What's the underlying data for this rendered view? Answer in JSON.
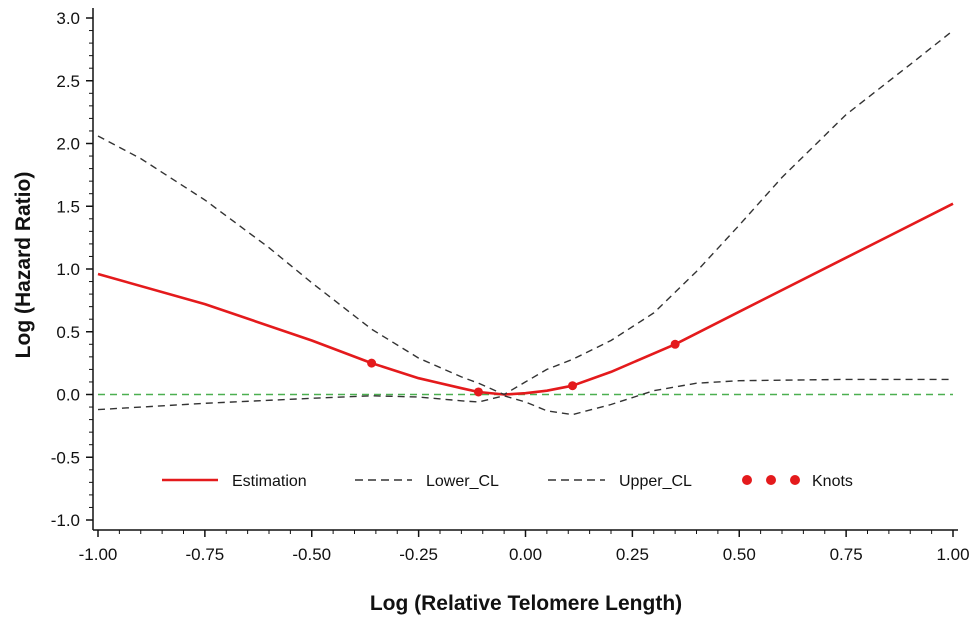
{
  "chart_data": {
    "type": "line",
    "title": "",
    "xlabel": "Log (Relative Telomere Length)",
    "ylabel": "Log (Hazard Ratio)",
    "xlim": [
      -1.0,
      1.0
    ],
    "ylim": [
      -1.0,
      3.0
    ],
    "x_ticks": [
      "-1.00",
      "-0.75",
      "-0.50",
      "-0.25",
      "0.00",
      "0.25",
      "0.50",
      "0.75",
      "1.00"
    ],
    "y_ticks": [
      "-1.0",
      "-0.5",
      "0.0",
      "0.5",
      "1.0",
      "1.5",
      "2.0",
      "2.5",
      "3.0"
    ],
    "grid": false,
    "reference_line": {
      "y": 0.0,
      "style": "dashed",
      "color": "#4caf50"
    },
    "legend": {
      "placement": "bottom-inside",
      "entries": [
        "Estimation",
        "Lower_CL",
        "Upper_CL",
        "Knots"
      ]
    },
    "series": [
      {
        "name": "Estimation",
        "color": "#e41a1c",
        "style": "solid",
        "x": [
          -1.0,
          -0.75,
          -0.5,
          -0.36,
          -0.25,
          -0.15,
          -0.11,
          -0.05,
          0.0,
          0.05,
          0.11,
          0.2,
          0.35,
          0.5,
          0.75,
          1.0
        ],
        "y": [
          0.96,
          0.72,
          0.43,
          0.25,
          0.13,
          0.05,
          0.02,
          0.0,
          0.01,
          0.03,
          0.07,
          0.18,
          0.4,
          0.66,
          1.09,
          1.52
        ]
      },
      {
        "name": "Lower_CL",
        "color": "#333333",
        "style": "dashed",
        "x": [
          -1.0,
          -0.75,
          -0.5,
          -0.36,
          -0.25,
          -0.15,
          -0.11,
          -0.05,
          0.0,
          0.05,
          0.11,
          0.2,
          0.3,
          0.4,
          0.5,
          0.75,
          1.0
        ],
        "y": [
          -0.12,
          -0.07,
          -0.03,
          -0.01,
          -0.02,
          -0.05,
          -0.06,
          -0.01,
          -0.06,
          -0.13,
          -0.16,
          -0.08,
          0.03,
          0.09,
          0.11,
          0.12,
          0.12
        ]
      },
      {
        "name": "Upper_CL",
        "color": "#333333",
        "style": "dashed",
        "x": [
          -1.0,
          -0.9,
          -0.75,
          -0.6,
          -0.5,
          -0.36,
          -0.25,
          -0.15,
          -0.11,
          -0.05,
          0.0,
          0.05,
          0.11,
          0.2,
          0.3,
          0.4,
          0.5,
          0.6,
          0.75,
          0.9,
          1.0
        ],
        "y": [
          2.06,
          1.88,
          1.55,
          1.17,
          0.89,
          0.52,
          0.29,
          0.14,
          0.09,
          0.0,
          0.1,
          0.2,
          0.28,
          0.43,
          0.65,
          0.98,
          1.35,
          1.73,
          2.23,
          2.63,
          2.9
        ]
      }
    ],
    "knots": {
      "name": "Knots",
      "color": "#e41a1c",
      "x": [
        -0.36,
        -0.11,
        0.11,
        0.35
      ],
      "y": [
        0.25,
        0.02,
        0.07,
        0.4
      ]
    }
  }
}
